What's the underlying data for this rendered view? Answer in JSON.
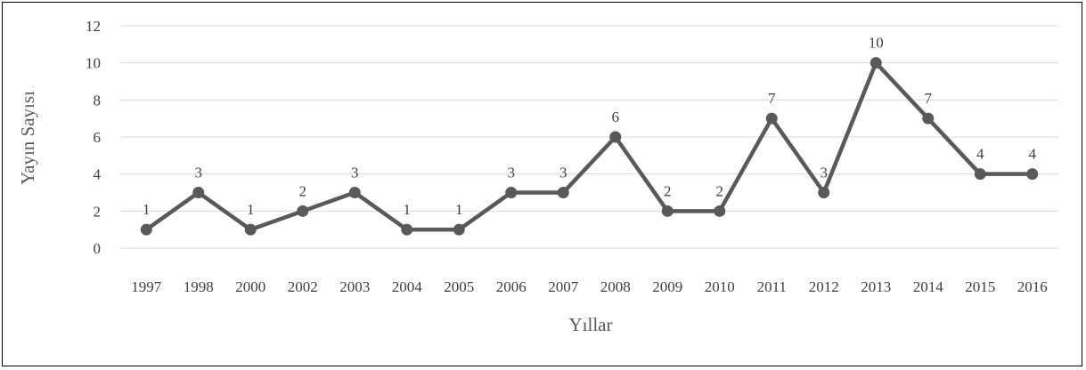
{
  "chart_data": {
    "type": "line",
    "title": "",
    "xlabel": "Yıllar",
    "ylabel": "Yayın Sayısı",
    "categories": [
      "1997",
      "1998",
      "2000",
      "2002",
      "2003",
      "2004",
      "2005",
      "2006",
      "2007",
      "2008",
      "2009",
      "2010",
      "2011",
      "2012",
      "2013",
      "2014",
      "2015",
      "2016"
    ],
    "series": [
      {
        "values": [
          1,
          3,
          1,
          2,
          3,
          1,
          1,
          3,
          3,
          6,
          2,
          2,
          7,
          3,
          10,
          7,
          4,
          4
        ]
      }
    ],
    "ylim": [
      0,
      12
    ],
    "yticks": [
      0,
      2,
      4,
      6,
      8,
      10,
      12
    ],
    "grid": true,
    "data_labels": true,
    "colors": {
      "line": "#595959",
      "marker": "#595959",
      "grid": "#d9d9d9",
      "text": "#404040"
    }
  }
}
